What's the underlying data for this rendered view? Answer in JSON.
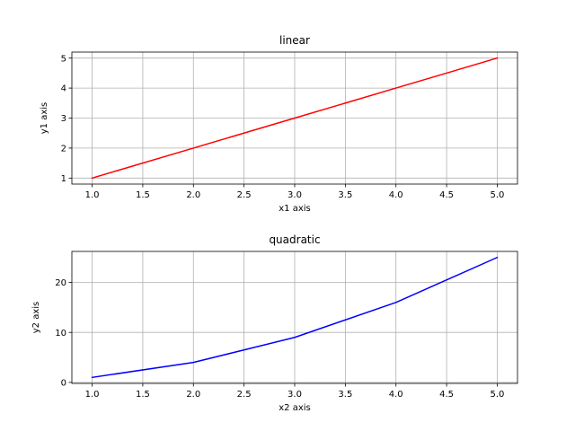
{
  "chart_data": [
    {
      "type": "line",
      "title": "linear",
      "xlabel": "x1 axis",
      "ylabel": "y1 axis",
      "x": [
        1,
        2,
        3,
        4,
        5
      ],
      "series": [
        {
          "values": [
            1,
            2,
            3,
            4,
            5
          ],
          "color": "#ff0000"
        }
      ],
      "xlim": [
        0.8,
        5.2
      ],
      "ylim": [
        0.8,
        5.2
      ],
      "xticks": [
        1.0,
        1.5,
        2.0,
        2.5,
        3.0,
        3.5,
        4.0,
        4.5,
        5.0
      ],
      "xtick_labels": [
        "1.0",
        "1.5",
        "2.0",
        "2.5",
        "3.0",
        "3.5",
        "4.0",
        "4.5",
        "5.0"
      ],
      "yticks": [
        1,
        2,
        3,
        4,
        5
      ],
      "ytick_labels": [
        "1",
        "2",
        "3",
        "4",
        "5"
      ],
      "grid": true,
      "grid_color": "#b0b0b0"
    },
    {
      "type": "line",
      "title": "quadratic",
      "xlabel": "x2 axis",
      "ylabel": "y2 axis",
      "x": [
        1,
        2,
        3,
        4,
        5
      ],
      "series": [
        {
          "values": [
            1,
            4,
            9,
            16,
            25
          ],
          "color": "#0000ff"
        }
      ],
      "xlim": [
        0.8,
        5.2
      ],
      "ylim": [
        -0.2,
        26.2
      ],
      "xticks": [
        1.0,
        1.5,
        2.0,
        2.5,
        3.0,
        3.5,
        4.0,
        4.5,
        5.0
      ],
      "xtick_labels": [
        "1.0",
        "1.5",
        "2.0",
        "2.5",
        "3.0",
        "3.5",
        "4.0",
        "4.5",
        "5.0"
      ],
      "yticks": [
        0,
        10,
        20
      ],
      "ytick_labels": [
        "0",
        "10",
        "20"
      ],
      "grid": true,
      "grid_color": "#b0b0b0"
    }
  ]
}
